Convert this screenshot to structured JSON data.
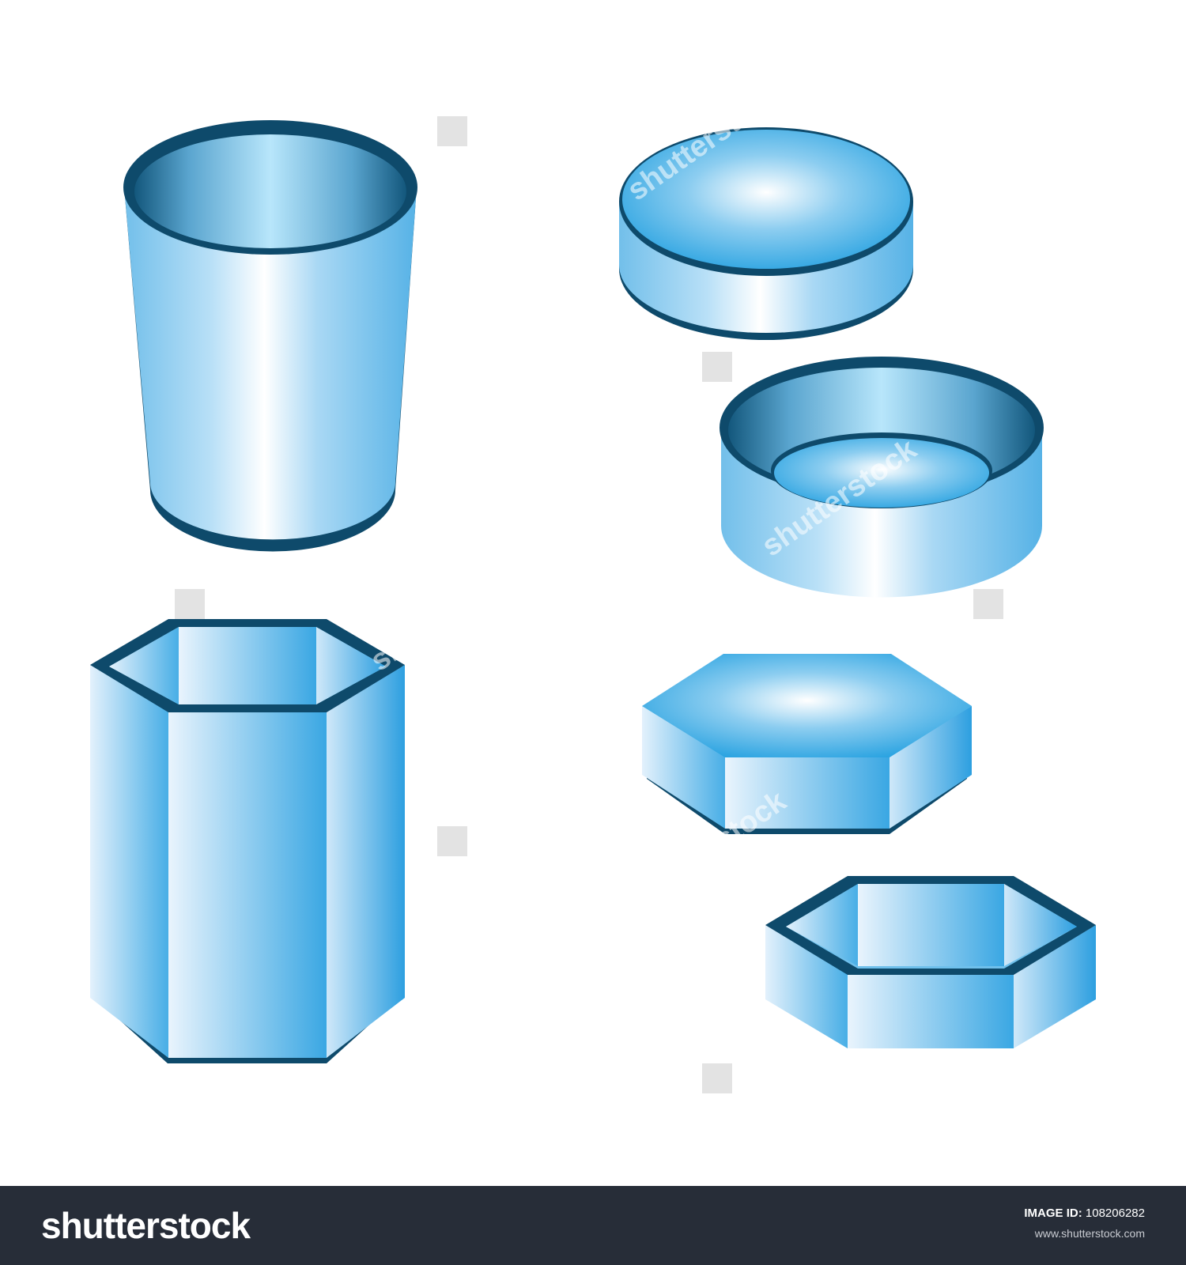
{
  "watermark": {
    "text": "shutterstock",
    "logo_text": "shutterstock",
    "icon": "shutterstock-logo-icon"
  },
  "footer": {
    "brand": "shutterstock",
    "image_id_label": "IMAGE ID:",
    "image_id": "108206282",
    "url": "www.shutterstock.com",
    "background": "#272d38"
  },
  "colors": {
    "shape_light": "#eef7ff",
    "shape_mid": "#a6d8f4",
    "shape_dark": "#2ba3e0",
    "rim": "#0e4a6b"
  },
  "shapes": [
    "tall-cylinder-cup-icon",
    "short-round-lid-icon",
    "short-round-bowl-icon",
    "tall-hexagonal-cup-icon",
    "hexagonal-lid-icon",
    "hexagonal-tray-icon"
  ]
}
